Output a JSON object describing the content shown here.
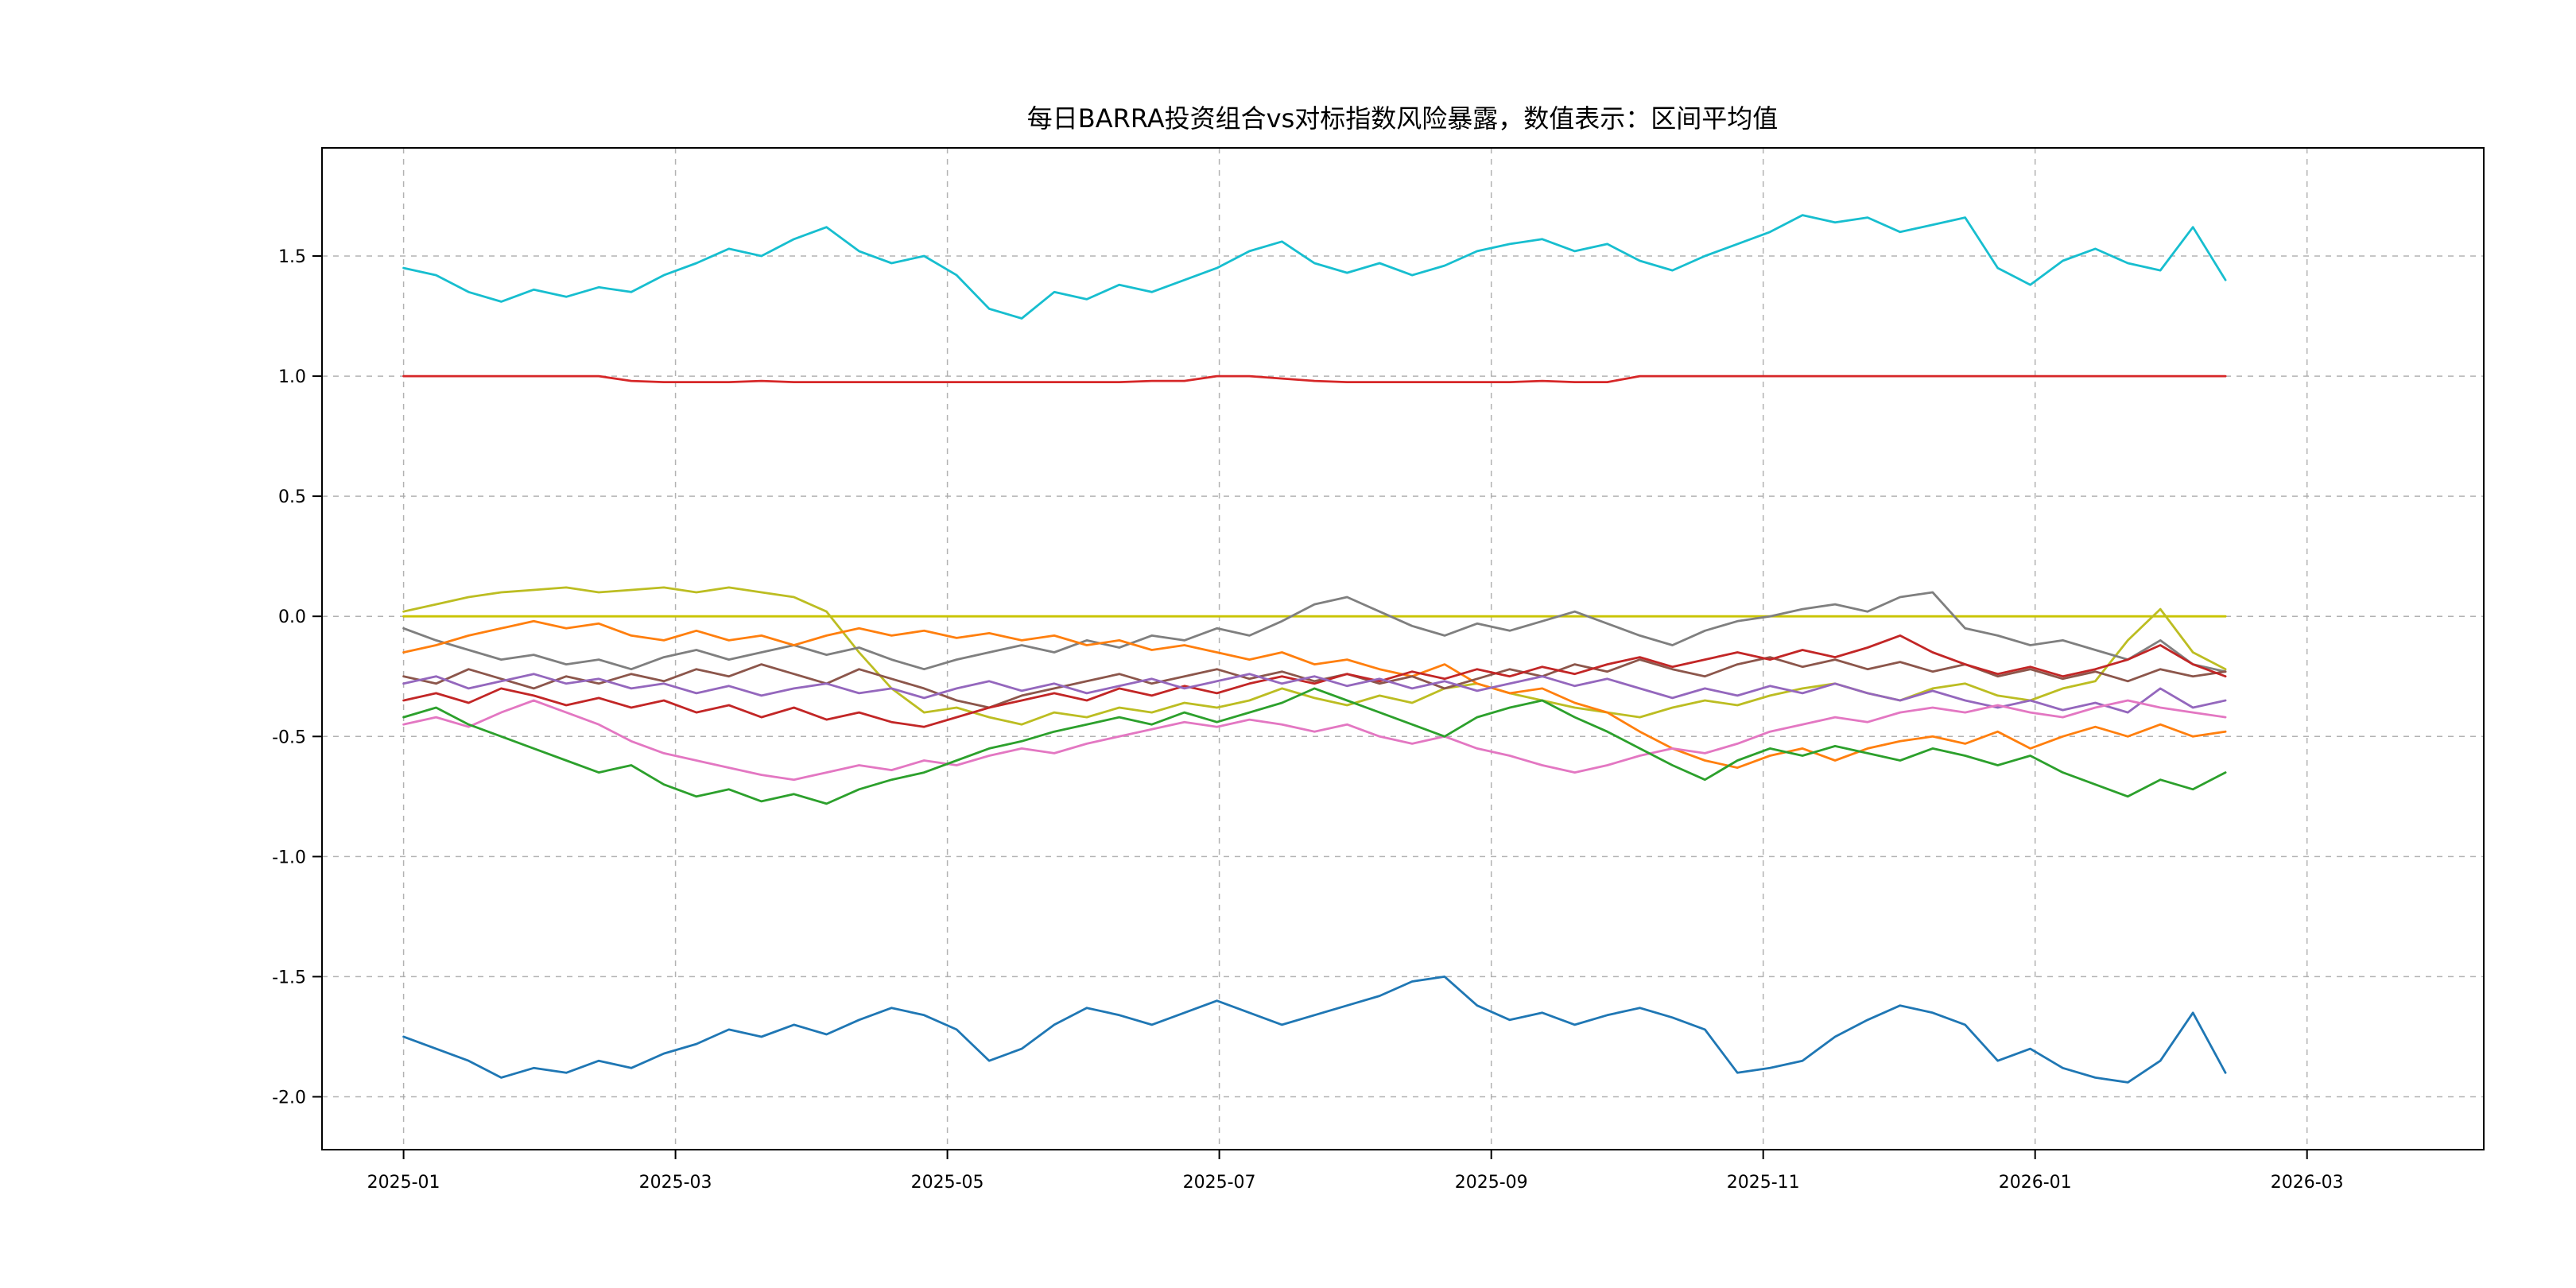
{
  "figure": {
    "background_color": "#ffffff"
  },
  "chart_data": {
    "type": "line",
    "title": "每日BARRA投资组合vs对标指数风险暴露，数值表示：区间平均值",
    "xlabel": "",
    "ylabel": "",
    "legend": "none",
    "grid": {
      "on": true,
      "style": "dashed",
      "color": "#aaaaaa"
    },
    "xlim_months": [
      -0.6,
      15.3
    ],
    "ylim": [
      -2.22,
      1.95
    ],
    "xtick_months": [
      0,
      2,
      4,
      6,
      8,
      10,
      12,
      14
    ],
    "xtick_labels": [
      "2025-01",
      "2025-03",
      "2025-05",
      "2025-07",
      "2025-09",
      "2025-11",
      "2026-01",
      "2026-03"
    ],
    "ytick_values": [
      -2.0,
      -1.5,
      -1.0,
      -0.5,
      0.0,
      0.5,
      1.0,
      1.5
    ],
    "ytick_labels": [
      "-2.0",
      "-1.5",
      "-1.0",
      "-0.5",
      "0.0",
      "0.5",
      "1.0",
      "1.5"
    ],
    "x_data_range_months": [
      0,
      13.4
    ],
    "series": [
      {
        "name": "cyan-upper-band",
        "color": "#17becf",
        "values": [
          1.45,
          1.42,
          1.35,
          1.31,
          1.36,
          1.33,
          1.37,
          1.35,
          1.42,
          1.47,
          1.53,
          1.5,
          1.57,
          1.62,
          1.52,
          1.47,
          1.5,
          1.42,
          1.28,
          1.24,
          1.35,
          1.32,
          1.38,
          1.35,
          1.4,
          1.45,
          1.52,
          1.56,
          1.47,
          1.43,
          1.47,
          1.42,
          1.46,
          1.52,
          1.55,
          1.57,
          1.52,
          1.55,
          1.48,
          1.44,
          1.5,
          1.55,
          1.6,
          1.67,
          1.64,
          1.66,
          1.6,
          1.63,
          1.66,
          1.45,
          1.38,
          1.48,
          1.53,
          1.47,
          1.44,
          1.62,
          1.4
        ]
      },
      {
        "name": "red-flat-at-one",
        "color": "#d62728",
        "values": [
          1.0,
          1.0,
          1.0,
          1.0,
          1.0,
          1.0,
          1.0,
          0.98,
          0.975,
          0.975,
          0.975,
          0.98,
          0.975,
          0.975,
          0.975,
          0.975,
          0.975,
          0.975,
          0.975,
          0.975,
          0.975,
          0.975,
          0.975,
          0.98,
          0.98,
          1.0,
          1.0,
          0.99,
          0.98,
          0.975,
          0.975,
          0.975,
          0.975,
          0.975,
          0.975,
          0.98,
          0.975,
          0.975,
          1.0,
          1.0,
          1.0,
          1.0,
          1.0,
          1.0,
          1.0,
          1.0,
          1.0,
          1.0,
          1.0,
          1.0,
          1.0,
          1.0,
          1.0,
          1.0,
          1.0,
          1.0,
          1.0
        ]
      },
      {
        "name": "yellow-flat-at-zero",
        "color": "#c9c400",
        "values": [
          0,
          0,
          0,
          0,
          0,
          0,
          0,
          0,
          0,
          0,
          0,
          0,
          0,
          0,
          0,
          0,
          0,
          0,
          0,
          0,
          0,
          0,
          0,
          0,
          0,
          0,
          0,
          0,
          0,
          0,
          0,
          0,
          0,
          0,
          0,
          0,
          0,
          0,
          0,
          0,
          0,
          0,
          0,
          0,
          0,
          0,
          0,
          0,
          0,
          0,
          0,
          0,
          0,
          0,
          0,
          0,
          0
        ]
      },
      {
        "name": "olive-wandering",
        "color": "#bcbd22",
        "values": [
          0.02,
          0.05,
          0.08,
          0.1,
          0.11,
          0.12,
          0.1,
          0.11,
          0.12,
          0.1,
          0.12,
          0.1,
          0.08,
          0.02,
          -0.15,
          -0.3,
          -0.4,
          -0.38,
          -0.42,
          -0.45,
          -0.4,
          -0.42,
          -0.38,
          -0.4,
          -0.36,
          -0.38,
          -0.35,
          -0.3,
          -0.34,
          -0.37,
          -0.33,
          -0.36,
          -0.3,
          -0.28,
          -0.32,
          -0.35,
          -0.38,
          -0.4,
          -0.42,
          -0.38,
          -0.35,
          -0.37,
          -0.33,
          -0.3,
          -0.28,
          -0.32,
          -0.35,
          -0.3,
          -0.28,
          -0.33,
          -0.35,
          -0.3,
          -0.27,
          -0.1,
          0.03,
          -0.15,
          -0.22
        ]
      },
      {
        "name": "gray",
        "color": "#7f7f7f",
        "values": [
          -0.05,
          -0.1,
          -0.14,
          -0.18,
          -0.16,
          -0.2,
          -0.18,
          -0.22,
          -0.17,
          -0.14,
          -0.18,
          -0.15,
          -0.12,
          -0.16,
          -0.13,
          -0.18,
          -0.22,
          -0.18,
          -0.15,
          -0.12,
          -0.15,
          -0.1,
          -0.13,
          -0.08,
          -0.1,
          -0.05,
          -0.08,
          -0.02,
          0.05,
          0.08,
          0.02,
          -0.04,
          -0.08,
          -0.03,
          -0.06,
          -0.02,
          0.02,
          -0.03,
          -0.08,
          -0.12,
          -0.06,
          -0.02,
          0.0,
          0.03,
          0.05,
          0.02,
          0.08,
          0.1,
          -0.05,
          -0.08,
          -0.12,
          -0.1,
          -0.14,
          -0.18,
          -0.1,
          -0.2,
          -0.23
        ]
      },
      {
        "name": "orange",
        "color": "#ff7f0e",
        "values": [
          -0.15,
          -0.12,
          -0.08,
          -0.05,
          -0.02,
          -0.05,
          -0.03,
          -0.08,
          -0.1,
          -0.06,
          -0.1,
          -0.08,
          -0.12,
          -0.08,
          -0.05,
          -0.08,
          -0.06,
          -0.09,
          -0.07,
          -0.1,
          -0.08,
          -0.12,
          -0.1,
          -0.14,
          -0.12,
          -0.15,
          -0.18,
          -0.15,
          -0.2,
          -0.18,
          -0.22,
          -0.25,
          -0.2,
          -0.28,
          -0.32,
          -0.3,
          -0.36,
          -0.4,
          -0.48,
          -0.55,
          -0.6,
          -0.63,
          -0.58,
          -0.55,
          -0.6,
          -0.55,
          -0.52,
          -0.5,
          -0.53,
          -0.48,
          -0.55,
          -0.5,
          -0.46,
          -0.5,
          -0.45,
          -0.5,
          -0.48
        ]
      },
      {
        "name": "brown",
        "color": "#8c564b",
        "values": [
          -0.25,
          -0.28,
          -0.22,
          -0.26,
          -0.3,
          -0.25,
          -0.28,
          -0.24,
          -0.27,
          -0.22,
          -0.25,
          -0.2,
          -0.24,
          -0.28,
          -0.22,
          -0.26,
          -0.3,
          -0.35,
          -0.38,
          -0.33,
          -0.3,
          -0.27,
          -0.24,
          -0.28,
          -0.25,
          -0.22,
          -0.26,
          -0.23,
          -0.27,
          -0.24,
          -0.28,
          -0.25,
          -0.3,
          -0.26,
          -0.22,
          -0.25,
          -0.2,
          -0.23,
          -0.18,
          -0.22,
          -0.25,
          -0.2,
          -0.17,
          -0.21,
          -0.18,
          -0.22,
          -0.19,
          -0.23,
          -0.2,
          -0.25,
          -0.22,
          -0.26,
          -0.23,
          -0.27,
          -0.22,
          -0.25,
          -0.23
        ]
      },
      {
        "name": "dark-red-wandering",
        "color": "#c22626",
        "values": [
          -0.35,
          -0.32,
          -0.36,
          -0.3,
          -0.33,
          -0.37,
          -0.34,
          -0.38,
          -0.35,
          -0.4,
          -0.37,
          -0.42,
          -0.38,
          -0.43,
          -0.4,
          -0.44,
          -0.46,
          -0.42,
          -0.38,
          -0.35,
          -0.32,
          -0.35,
          -0.3,
          -0.33,
          -0.29,
          -0.32,
          -0.28,
          -0.25,
          -0.28,
          -0.24,
          -0.27,
          -0.23,
          -0.26,
          -0.22,
          -0.25,
          -0.21,
          -0.24,
          -0.2,
          -0.17,
          -0.21,
          -0.18,
          -0.15,
          -0.18,
          -0.14,
          -0.17,
          -0.13,
          -0.08,
          -0.15,
          -0.2,
          -0.24,
          -0.21,
          -0.25,
          -0.22,
          -0.18,
          -0.12,
          -0.2,
          -0.25
        ]
      },
      {
        "name": "purple",
        "color": "#9467bd",
        "values": [
          -0.28,
          -0.25,
          -0.3,
          -0.27,
          -0.24,
          -0.28,
          -0.26,
          -0.3,
          -0.28,
          -0.32,
          -0.29,
          -0.33,
          -0.3,
          -0.28,
          -0.32,
          -0.3,
          -0.34,
          -0.3,
          -0.27,
          -0.31,
          -0.28,
          -0.32,
          -0.29,
          -0.26,
          -0.3,
          -0.27,
          -0.24,
          -0.28,
          -0.25,
          -0.29,
          -0.26,
          -0.3,
          -0.27,
          -0.31,
          -0.28,
          -0.25,
          -0.29,
          -0.26,
          -0.3,
          -0.34,
          -0.3,
          -0.33,
          -0.29,
          -0.32,
          -0.28,
          -0.32,
          -0.35,
          -0.31,
          -0.35,
          -0.38,
          -0.35,
          -0.39,
          -0.36,
          -0.4,
          -0.3,
          -0.38,
          -0.35
        ]
      },
      {
        "name": "pink",
        "color": "#e377c2",
        "values": [
          -0.45,
          -0.42,
          -0.46,
          -0.4,
          -0.35,
          -0.4,
          -0.45,
          -0.52,
          -0.57,
          -0.6,
          -0.63,
          -0.66,
          -0.68,
          -0.65,
          -0.62,
          -0.64,
          -0.6,
          -0.62,
          -0.58,
          -0.55,
          -0.57,
          -0.53,
          -0.5,
          -0.47,
          -0.44,
          -0.46,
          -0.43,
          -0.45,
          -0.48,
          -0.45,
          -0.5,
          -0.53,
          -0.5,
          -0.55,
          -0.58,
          -0.62,
          -0.65,
          -0.62,
          -0.58,
          -0.55,
          -0.57,
          -0.53,
          -0.48,
          -0.45,
          -0.42,
          -0.44,
          -0.4,
          -0.38,
          -0.4,
          -0.37,
          -0.4,
          -0.42,
          -0.38,
          -0.35,
          -0.38,
          -0.4,
          -0.42
        ]
      },
      {
        "name": "green",
        "color": "#2ca02c",
        "values": [
          -0.42,
          -0.38,
          -0.45,
          -0.5,
          -0.55,
          -0.6,
          -0.65,
          -0.62,
          -0.7,
          -0.75,
          -0.72,
          -0.77,
          -0.74,
          -0.78,
          -0.72,
          -0.68,
          -0.65,
          -0.6,
          -0.55,
          -0.52,
          -0.48,
          -0.45,
          -0.42,
          -0.45,
          -0.4,
          -0.44,
          -0.4,
          -0.36,
          -0.3,
          -0.35,
          -0.4,
          -0.45,
          -0.5,
          -0.42,
          -0.38,
          -0.35,
          -0.42,
          -0.48,
          -0.55,
          -0.62,
          -0.68,
          -0.6,
          -0.55,
          -0.58,
          -0.54,
          -0.57,
          -0.6,
          -0.55,
          -0.58,
          -0.62,
          -0.58,
          -0.65,
          -0.7,
          -0.75,
          -0.68,
          -0.72,
          -0.65
        ]
      },
      {
        "name": "blue-lower-band",
        "color": "#1f77b4",
        "values": [
          -1.75,
          -1.8,
          -1.85,
          -1.92,
          -1.88,
          -1.9,
          -1.85,
          -1.88,
          -1.82,
          -1.78,
          -1.72,
          -1.75,
          -1.7,
          -1.74,
          -1.68,
          -1.63,
          -1.66,
          -1.72,
          -1.85,
          -1.8,
          -1.7,
          -1.63,
          -1.66,
          -1.7,
          -1.65,
          -1.6,
          -1.65,
          -1.7,
          -1.66,
          -1.62,
          -1.58,
          -1.52,
          -1.5,
          -1.62,
          -1.68,
          -1.65,
          -1.7,
          -1.66,
          -1.63,
          -1.67,
          -1.72,
          -1.9,
          -1.88,
          -1.85,
          -1.75,
          -1.68,
          -1.62,
          -1.65,
          -1.7,
          -1.85,
          -1.8,
          -1.88,
          -1.92,
          -1.94,
          -1.85,
          -1.65,
          -1.9
        ]
      }
    ]
  }
}
